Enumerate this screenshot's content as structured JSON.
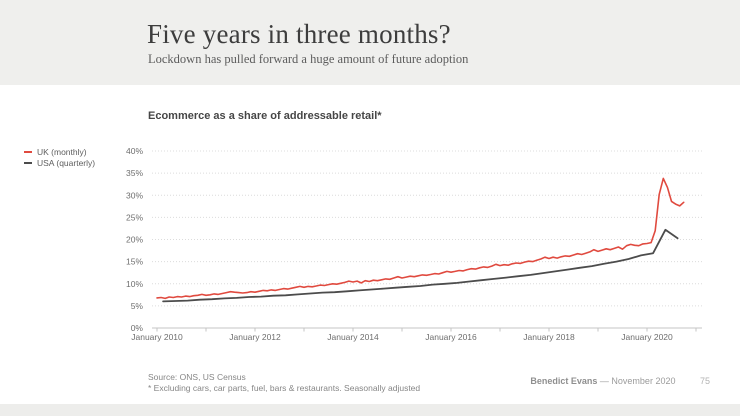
{
  "header": {
    "title": "Five years in three months?",
    "subtitle": "Lockdown has pulled forward a huge amount of future adoption"
  },
  "chart": {
    "title": "Ecommerce as a share of addressable retail*"
  },
  "legend": [
    {
      "label": "UK (monthly)",
      "color": "#e04a3f"
    },
    {
      "label": "USA (quarterly)",
      "color": "#4c4c4c"
    }
  ],
  "footer": {
    "source_line1": "Source: ONS, US Census",
    "source_line2": "* Excluding cars, car parts, fuel, bars & restaurants. Seasonally adjusted",
    "author": "Benedict Evans",
    "date": "— November 2020",
    "page": "75"
  },
  "chart_data": {
    "type": "line",
    "title": "Ecommerce as a share of addressable retail*",
    "xlabel": "",
    "ylabel": "",
    "ylim": [
      0,
      40
    ],
    "yticks": [
      0,
      5,
      10,
      15,
      20,
      25,
      30,
      35,
      40
    ],
    "ytick_suffix": "%",
    "grid": "horizontal-dotted",
    "legend_position": "left",
    "xticks": [
      {
        "t": 2010,
        "label": "January 2010"
      },
      {
        "t": 2011,
        "label": ""
      },
      {
        "t": 2012,
        "label": "January 2012"
      },
      {
        "t": 2013,
        "label": ""
      },
      {
        "t": 2014,
        "label": "January 2014"
      },
      {
        "t": 2015,
        "label": ""
      },
      {
        "t": 2016,
        "label": "January 2016"
      },
      {
        "t": 2017,
        "label": ""
      },
      {
        "t": 2018,
        "label": "January 2018"
      },
      {
        "t": 2019,
        "label": ""
      },
      {
        "t": 2020,
        "label": "January 2020"
      },
      {
        "t": 2021,
        "label": ""
      }
    ],
    "series": [
      {
        "name": "UK (monthly)",
        "color": "#e04a3f",
        "x_start": 2010.0,
        "x_step": 0.083333,
        "values": [
          6.8,
          6.9,
          6.7,
          7.0,
          6.9,
          7.1,
          7.0,
          7.2,
          7.1,
          7.3,
          7.4,
          7.6,
          7.4,
          7.5,
          7.7,
          7.6,
          7.8,
          8.0,
          8.2,
          8.1,
          8.0,
          7.9,
          8.0,
          8.2,
          8.1,
          8.3,
          8.5,
          8.4,
          8.6,
          8.5,
          8.7,
          8.9,
          8.8,
          9.0,
          9.2,
          9.4,
          9.2,
          9.4,
          9.3,
          9.5,
          9.7,
          9.6,
          9.8,
          10.0,
          9.9,
          10.1,
          10.3,
          10.6,
          10.4,
          10.6,
          10.2,
          10.7,
          10.5,
          10.8,
          10.7,
          10.9,
          11.1,
          11.0,
          11.3,
          11.6,
          11.3,
          11.5,
          11.7,
          11.6,
          11.8,
          12.0,
          11.9,
          12.1,
          12.3,
          12.2,
          12.5,
          12.8,
          12.6,
          12.8,
          13.0,
          12.9,
          13.2,
          13.4,
          13.3,
          13.6,
          13.8,
          13.7,
          14.0,
          14.4,
          14.1,
          14.3,
          14.2,
          14.5,
          14.7,
          14.6,
          14.9,
          15.1,
          15.0,
          15.3,
          15.6,
          16.0,
          15.7,
          16.0,
          15.8,
          16.1,
          16.3,
          16.2,
          16.5,
          16.8,
          16.6,
          16.9,
          17.2,
          17.7,
          17.3,
          17.6,
          17.9,
          17.7,
          18.0,
          18.3,
          17.8,
          18.6,
          18.9,
          18.7,
          18.6,
          19.0,
          19.1,
          19.3,
          22.0,
          30.2,
          33.8,
          31.8,
          28.6,
          28.0,
          27.6,
          28.4
        ]
      },
      {
        "name": "USA (quarterly)",
        "color": "#4c4c4c",
        "x_start": 2010.125,
        "x_step": 0.25,
        "values": [
          6.0,
          6.1,
          6.2,
          6.4,
          6.5,
          6.7,
          6.8,
          7.0,
          7.1,
          7.3,
          7.4,
          7.6,
          7.8,
          8.0,
          8.1,
          8.3,
          8.5,
          8.7,
          8.9,
          9.1,
          9.3,
          9.5,
          9.8,
          10.0,
          10.2,
          10.5,
          10.8,
          11.1,
          11.4,
          11.7,
          12.0,
          12.4,
          12.8,
          13.2,
          13.6,
          14.0,
          14.5,
          15.0,
          15.6,
          16.4,
          16.9,
          22.2,
          20.3
        ]
      }
    ]
  }
}
